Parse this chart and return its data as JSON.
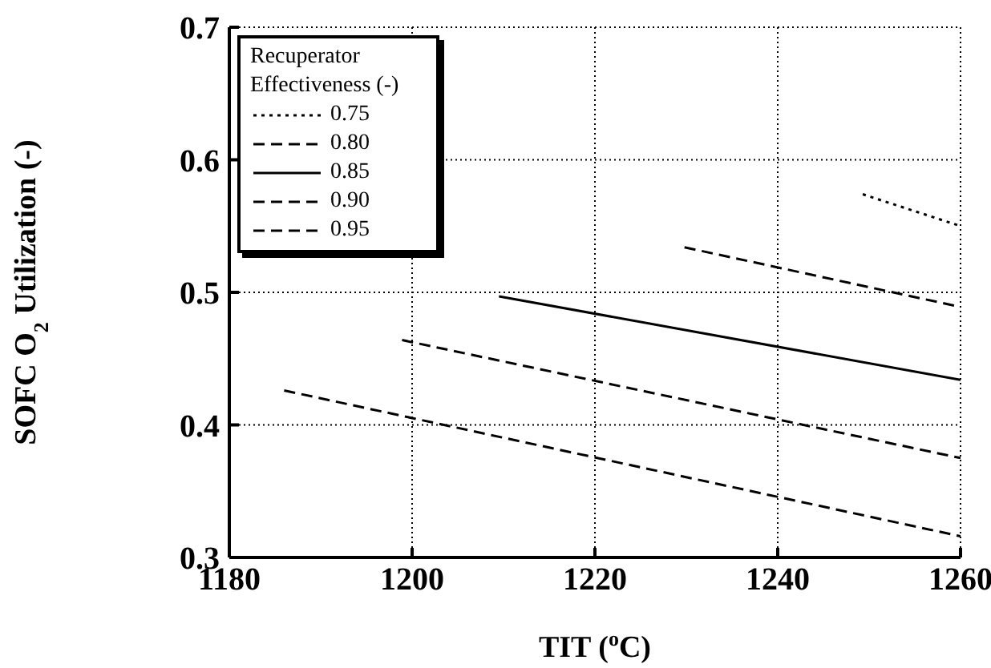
{
  "chart_data": {
    "type": "line",
    "xlabel": "TIT ($^{o}$C)",
    "ylabel": "SOFC O$_{2}$ Utilization (-)",
    "legend_title": "Recuperator Effectiveness (-)",
    "xlim": [
      1180,
      1260
    ],
    "xticks": [
      1180,
      1200,
      1220,
      1240,
      1260
    ],
    "ylim": [
      0.3,
      0.7
    ],
    "yticks": [
      0.3,
      0.4,
      0.5,
      0.6,
      0.7
    ],
    "grid": true,
    "legend": "top left",
    "marker": "none",
    "series": [
      {
        "name": "0.75",
        "color": "#000000",
        "line_style": "dotted",
        "x": [
          1249.3,
          1260
        ],
        "values": [
          0.574,
          0.55
        ]
      },
      {
        "name": "0.80",
        "color": "#000000",
        "line_style": "dashed",
        "x": [
          1229.8,
          1260
        ],
        "values": [
          0.534,
          0.489
        ]
      },
      {
        "name": "0.85",
        "color": "#000000",
        "line_style": "solid",
        "x": [
          1209.5,
          1260
        ],
        "values": [
          0.497,
          0.434
        ]
      },
      {
        "name": "0.90",
        "color": "#000000",
        "line_style": "dashed",
        "x": [
          1198.9,
          1260
        ],
        "values": [
          0.464,
          0.375
        ]
      },
      {
        "name": "0.95",
        "color": "#000000",
        "line_style": "dashed",
        "x": [
          1186,
          1260
        ],
        "values": [
          0.426,
          0.316
        ]
      }
    ]
  }
}
